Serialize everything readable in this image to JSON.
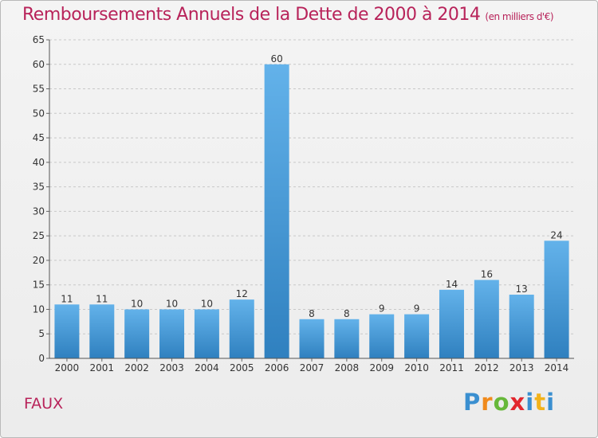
{
  "header": {
    "title": "Remboursements Annuels de la Dette de 2000 à 2014",
    "subtitle": "(en milliers d'€)"
  },
  "footer": {
    "commune": "FAUX",
    "logo_text": "Proxiti"
  },
  "colors": {
    "title": "#b8235a",
    "bar_top": "#63b2ea",
    "bar_bottom": "#2f80bf"
  },
  "chart_data": {
    "type": "bar",
    "categories": [
      "2000",
      "2001",
      "2002",
      "2003",
      "2004",
      "2005",
      "2006",
      "2007",
      "2008",
      "2009",
      "2010",
      "2011",
      "2012",
      "2013",
      "2014"
    ],
    "values": [
      11,
      11,
      10,
      10,
      10,
      12,
      60,
      8,
      8,
      9,
      9,
      14,
      16,
      13,
      24
    ],
    "title": "Remboursements Annuels de la Dette de 2000 à 2014",
    "subtitle": "(en milliers d'€)",
    "xlabel": "",
    "ylabel": "",
    "ylim": [
      0,
      65
    ],
    "yticks": [
      0,
      5,
      10,
      15,
      20,
      25,
      30,
      35,
      40,
      45,
      50,
      55,
      60,
      65
    ],
    "grid": "horizontal-dashed",
    "legend": "none"
  }
}
